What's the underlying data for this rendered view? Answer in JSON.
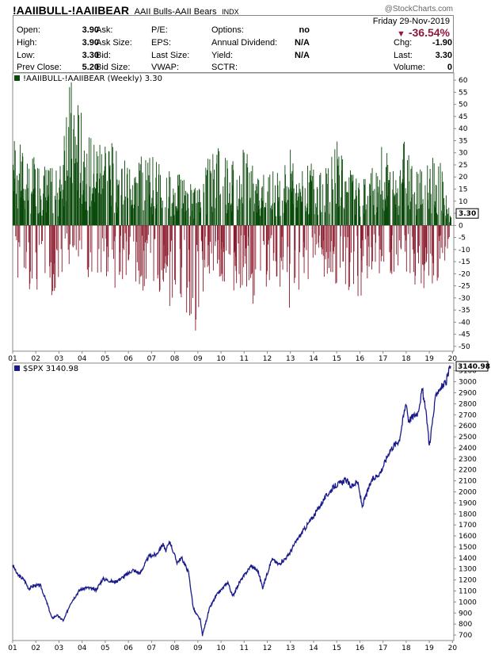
{
  "header": {
    "symbol": "!AAIIBULL-!AAIIBEAR",
    "name": "AAII Bulls-AAII Bears",
    "exchange": "INDX",
    "brand": "@StockCharts.com"
  },
  "quote": {
    "date": "Friday  29-Nov-2019",
    "pct_change": "-36.54%",
    "fields": [
      {
        "label": "Open:",
        "value": "3.90"
      },
      {
        "label": "High:",
        "value": "3.90"
      },
      {
        "label": "Low:",
        "value": "3.30"
      },
      {
        "label": "Prev Close:",
        "value": "5.20"
      },
      {
        "label": "Ask:",
        "value": ""
      },
      {
        "label": "Ask Size:",
        "value": ""
      },
      {
        "label": "Bid:",
        "value": ""
      },
      {
        "label": "Bid Size:",
        "value": ""
      },
      {
        "label": "P/E:",
        "value": ""
      },
      {
        "label": "EPS:",
        "value": ""
      },
      {
        "label": "Last Size:",
        "value": ""
      },
      {
        "label": "VWAP:",
        "value": ""
      },
      {
        "label": "Options:",
        "value": "no"
      },
      {
        "label": "Annual Dividend:",
        "value": "N/A"
      },
      {
        "label": "Yield:",
        "value": "N/A"
      },
      {
        "label": "SCTR:",
        "value": ""
      },
      {
        "label": "Chg:",
        "value": "-1.90"
      },
      {
        "label": "Last:",
        "value": "3.30"
      },
      {
        "label": "Volume:",
        "value": "0"
      }
    ]
  },
  "colors": {
    "up": "#0a4a0a",
    "down": "#8b1a2c",
    "spx": "#1a1a8c",
    "pct": "#8b1a3b"
  },
  "chart_data": [
    {
      "type": "bar",
      "title": "!AAIIBULL-!AAIIBEAR (Weekly) 3.30",
      "last_value_label": "3.30",
      "x_ticks": [
        "01",
        "02",
        "03",
        "04",
        "05",
        "06",
        "07",
        "08",
        "09",
        "10",
        "11",
        "12",
        "13",
        "14",
        "15",
        "16",
        "17",
        "18",
        "19",
        "20"
      ],
      "x_range": [
        2001.0,
        2019.92
      ],
      "ylim": [
        -52,
        63
      ],
      "y_ticks": [
        60,
        55,
        50,
        45,
        40,
        35,
        30,
        25,
        20,
        15,
        10,
        5,
        0,
        -5,
        -10,
        -15,
        -20,
        -25,
        -30,
        -35,
        -40,
        -45,
        -50
      ],
      "x_key_years": [
        2001.0,
        2001.5,
        2002.0,
        2002.5,
        2003.0,
        2003.3,
        2003.6,
        2004.0,
        2004.5,
        2005.0,
        2005.5,
        2006.0,
        2006.5,
        2007.0,
        2007.5,
        2008.0,
        2008.5,
        2009.0,
        2009.2,
        2009.5,
        2010.0,
        2010.5,
        2011.0,
        2011.5,
        2012.0,
        2012.5,
        2013.0,
        2013.5,
        2014.0,
        2014.5,
        2015.0,
        2015.5,
        2016.0,
        2016.5,
        2017.0,
        2017.5,
        2018.0,
        2018.5,
        2019.0,
        2019.5,
        2019.92
      ],
      "values_top": [
        40,
        30,
        28,
        25,
        22,
        58,
        62,
        45,
        35,
        40,
        30,
        28,
        32,
        30,
        25,
        22,
        20,
        15,
        18,
        35,
        35,
        28,
        40,
        20,
        25,
        22,
        32,
        25,
        28,
        26,
        42,
        25,
        18,
        25,
        35,
        22,
        42,
        25,
        30,
        26,
        4
      ],
      "values_bottom": [
        -20,
        -25,
        -30,
        -28,
        -37,
        -20,
        -12,
        -15,
        -28,
        -25,
        -30,
        -18,
        -28,
        -25,
        -30,
        -40,
        -38,
        -51,
        -30,
        -20,
        -28,
        -32,
        -25,
        -36,
        -25,
        -30,
        -35,
        -25,
        -20,
        -22,
        -25,
        -28,
        -30,
        -20,
        -20,
        -25,
        -22,
        -28,
        -25,
        -22,
        -3
      ],
      "last_value": 3.3
    },
    {
      "type": "line",
      "title": "$SPX 3140.98",
      "last_value_label": "3140.98",
      "x_ticks": [
        "01",
        "02",
        "03",
        "04",
        "05",
        "06",
        "07",
        "08",
        "09",
        "10",
        "11",
        "12",
        "13",
        "14",
        "15",
        "16",
        "17",
        "18",
        "19",
        "20"
      ],
      "x_range": [
        2001.0,
        2019.92
      ],
      "ylim": [
        650,
        3170
      ],
      "y_ticks": [
        3100,
        3000,
        2900,
        2800,
        2700,
        2600,
        2500,
        2400,
        2300,
        2200,
        2100,
        2000,
        1900,
        1800,
        1700,
        1600,
        1500,
        1400,
        1300,
        1200,
        1100,
        1000,
        900,
        800,
        700
      ],
      "x": [
        2001.0,
        2001.2,
        2001.5,
        2001.7,
        2001.9,
        2002.2,
        2002.5,
        2002.7,
        2002.9,
        2003.2,
        2003.5,
        2003.9,
        2004.2,
        2004.6,
        2004.9,
        2005.4,
        2005.8,
        2006.2,
        2006.5,
        2006.9,
        2007.2,
        2007.5,
        2007.6,
        2007.8,
        2007.9,
        2008.1,
        2008.3,
        2008.6,
        2008.8,
        2008.9,
        2009.1,
        2009.2,
        2009.5,
        2009.8,
        2010.3,
        2010.5,
        2010.8,
        2011.3,
        2011.6,
        2011.8,
        2012.2,
        2012.5,
        2012.9,
        2013.3,
        2013.7,
        2014.0,
        2014.5,
        2014.9,
        2015.4,
        2015.6,
        2015.9,
        2016.1,
        2016.5,
        2016.9,
        2017.3,
        2017.7,
        2018.0,
        2018.1,
        2018.5,
        2018.7,
        2018.9,
        2019.0,
        2019.3,
        2019.5,
        2019.7,
        2019.92
      ],
      "y": [
        1340,
        1250,
        1200,
        1120,
        1150,
        1150,
        980,
        850,
        880,
        830,
        990,
        1110,
        1130,
        1110,
        1210,
        1180,
        1230,
        1290,
        1260,
        1420,
        1430,
        1530,
        1460,
        1550,
        1480,
        1360,
        1400,
        1270,
        950,
        900,
        840,
        700,
        940,
        1060,
        1180,
        1050,
        1180,
        1330,
        1280,
        1130,
        1390,
        1340,
        1420,
        1570,
        1690,
        1780,
        1950,
        2050,
        2110,
        2050,
        2090,
        1870,
        2100,
        2180,
        2380,
        2470,
        2820,
        2650,
        2720,
        2930,
        2650,
        2420,
        2900,
        2950,
        2980,
        3140.98
      ]
    }
  ]
}
